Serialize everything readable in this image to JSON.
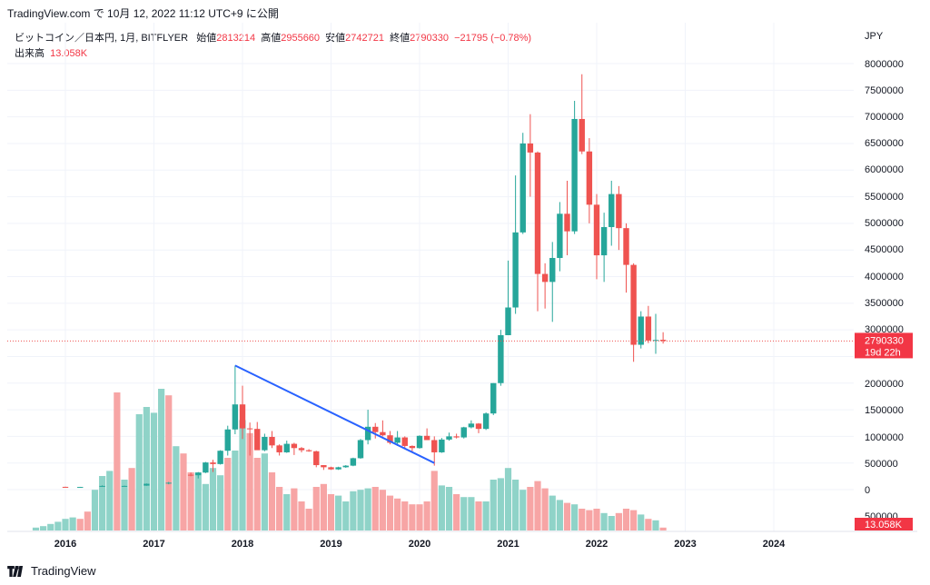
{
  "header": {
    "source_line": "TradingView.com で 10月 12, 2022 11:12 UTC+9 に公開"
  },
  "legend": {
    "symbol": "ビットコイン／日本円, 1月, BITFLYER",
    "open_label": "始値",
    "open_value": "2813214",
    "high_label": "高値",
    "high_value": "2955660",
    "low_label": "安値",
    "low_value": "2742721",
    "close_label": "終値",
    "close_value": "2790330",
    "change": "−21795 (−0.78%)",
    "volume_label": "出来高",
    "volume_value": "13.058K"
  },
  "footer": {
    "brand": "TradingView"
  },
  "colors": {
    "up": "#26a69a",
    "down": "#ef5350",
    "vol_up": "#8fd3c8",
    "vol_down": "#f7a5a5",
    "trendline": "#2962ff",
    "price_label_bg": "#f23645"
  },
  "chart_data": {
    "type": "candlestick",
    "currency": "JPY",
    "ylim": [
      -500000,
      8300000
    ],
    "price_ticks": [
      "8000000",
      "7500000",
      "7000000",
      "6500000",
      "6000000",
      "5500000",
      "5000000",
      "4500000",
      "4000000",
      "3500000",
      "3000000",
      "2000000",
      "1500000",
      "1000000",
      "500000",
      "0",
      "500000"
    ],
    "x_ticks": [
      "2016",
      "2017",
      "2018",
      "2019",
      "2020",
      "2021",
      "2022",
      "2023",
      "2024"
    ],
    "current_price_label": "2790330",
    "countdown_label": "19d 22h",
    "current_volume_label": "13.058K",
    "trendline": {
      "start": [
        "2017-12",
        2330000
      ],
      "end": [
        "2020-03",
        500000
      ]
    },
    "candles": [
      {
        "d": "2016-01",
        "o": 52000,
        "h": 56000,
        "l": 48000,
        "c": 50000
      },
      {
        "d": "2016-03",
        "o": 48000,
        "h": 52000,
        "l": 46000,
        "c": 50000
      },
      {
        "d": "2016-06",
        "o": 60000,
        "h": 80000,
        "l": 55000,
        "c": 70000
      },
      {
        "d": "2016-09",
        "o": 65000,
        "h": 75000,
        "l": 60000,
        "c": 70000
      },
      {
        "d": "2016-12",
        "o": 75000,
        "h": 115000,
        "l": 72000,
        "c": 110000
      },
      {
        "d": "2017-03",
        "o": 120000,
        "h": 145000,
        "l": 100000,
        "c": 130000
      },
      {
        "d": "2017-06",
        "o": 280000,
        "h": 320000,
        "l": 250000,
        "c": 270000
      },
      {
        "d": "2017-07",
        "o": 270000,
        "h": 330000,
        "l": 210000,
        "c": 320000
      },
      {
        "d": "2017-08",
        "o": 320000,
        "h": 520000,
        "l": 310000,
        "c": 510000
      },
      {
        "d": "2017-09",
        "o": 510000,
        "h": 560000,
        "l": 330000,
        "c": 480000
      },
      {
        "d": "2017-10",
        "o": 480000,
        "h": 740000,
        "l": 470000,
        "c": 730000
      },
      {
        "d": "2017-11",
        "o": 730000,
        "h": 1200000,
        "l": 640000,
        "c": 1130000
      },
      {
        "d": "2017-12",
        "o": 1130000,
        "h": 2330000,
        "l": 1040000,
        "c": 1600000
      },
      {
        "d": "2018-01",
        "o": 1600000,
        "h": 1950000,
        "l": 950000,
        "c": 1150000
      },
      {
        "d": "2018-02",
        "o": 1150000,
        "h": 1260000,
        "l": 640000,
        "c": 1140000
      },
      {
        "d": "2018-03",
        "o": 1140000,
        "h": 1270000,
        "l": 780000,
        "c": 740000
      },
      {
        "d": "2018-04",
        "o": 740000,
        "h": 1050000,
        "l": 720000,
        "c": 990000
      },
      {
        "d": "2018-05",
        "o": 990000,
        "h": 1100000,
        "l": 780000,
        "c": 830000
      },
      {
        "d": "2018-06",
        "o": 830000,
        "h": 850000,
        "l": 640000,
        "c": 700000
      },
      {
        "d": "2018-07",
        "o": 700000,
        "h": 920000,
        "l": 690000,
        "c": 860000
      },
      {
        "d": "2018-08",
        "o": 860000,
        "h": 880000,
        "l": 650000,
        "c": 780000
      },
      {
        "d": "2018-09",
        "o": 780000,
        "h": 800000,
        "l": 700000,
        "c": 740000
      },
      {
        "d": "2018-10",
        "o": 740000,
        "h": 760000,
        "l": 710000,
        "c": 720000
      },
      {
        "d": "2018-11",
        "o": 720000,
        "h": 730000,
        "l": 420000,
        "c": 460000
      },
      {
        "d": "2018-12",
        "o": 460000,
        "h": 460000,
        "l": 370000,
        "c": 420000
      },
      {
        "d": "2019-01",
        "o": 420000,
        "h": 430000,
        "l": 370000,
        "c": 380000
      },
      {
        "d": "2019-02",
        "o": 380000,
        "h": 430000,
        "l": 370000,
        "c": 420000
      },
      {
        "d": "2019-03",
        "o": 420000,
        "h": 460000,
        "l": 410000,
        "c": 450000
      },
      {
        "d": "2019-04",
        "o": 450000,
        "h": 600000,
        "l": 440000,
        "c": 590000
      },
      {
        "d": "2019-05",
        "o": 590000,
        "h": 950000,
        "l": 580000,
        "c": 930000
      },
      {
        "d": "2019-06",
        "o": 930000,
        "h": 1500000,
        "l": 850000,
        "c": 1180000
      },
      {
        "d": "2019-07",
        "o": 1180000,
        "h": 1250000,
        "l": 960000,
        "c": 1080000
      },
      {
        "d": "2019-08",
        "o": 1080000,
        "h": 1300000,
        "l": 1000000,
        "c": 1020000
      },
      {
        "d": "2019-09",
        "o": 1020000,
        "h": 1100000,
        "l": 850000,
        "c": 880000
      },
      {
        "d": "2019-10",
        "o": 880000,
        "h": 1100000,
        "l": 820000,
        "c": 980000
      },
      {
        "d": "2019-11",
        "o": 980000,
        "h": 1000000,
        "l": 760000,
        "c": 820000
      },
      {
        "d": "2019-12",
        "o": 820000,
        "h": 830000,
        "l": 720000,
        "c": 780000
      },
      {
        "d": "2020-01",
        "o": 780000,
        "h": 1020000,
        "l": 770000,
        "c": 1010000
      },
      {
        "d": "2020-02",
        "o": 1010000,
        "h": 1150000,
        "l": 930000,
        "c": 930000
      },
      {
        "d": "2020-03",
        "o": 930000,
        "h": 1000000,
        "l": 450000,
        "c": 700000
      },
      {
        "d": "2020-04",
        "o": 700000,
        "h": 970000,
        "l": 690000,
        "c": 940000
      },
      {
        "d": "2020-05",
        "o": 940000,
        "h": 1070000,
        "l": 920000,
        "c": 1000000
      },
      {
        "d": "2020-06",
        "o": 1000000,
        "h": 1050000,
        "l": 960000,
        "c": 980000
      },
      {
        "d": "2020-07",
        "o": 980000,
        "h": 1180000,
        "l": 960000,
        "c": 1170000
      },
      {
        "d": "2020-08",
        "o": 1170000,
        "h": 1300000,
        "l": 1150000,
        "c": 1240000
      },
      {
        "d": "2020-09",
        "o": 1240000,
        "h": 1250000,
        "l": 1060000,
        "c": 1140000
      },
      {
        "d": "2020-10",
        "o": 1140000,
        "h": 1450000,
        "l": 1120000,
        "c": 1430000
      },
      {
        "d": "2020-11",
        "o": 1430000,
        "h": 2000000,
        "l": 1400000,
        "c": 2000000
      },
      {
        "d": "2020-12",
        "o": 2000000,
        "h": 3000000,
        "l": 1950000,
        "c": 2900000
      },
      {
        "d": "2021-01",
        "o": 2900000,
        "h": 4300000,
        "l": 2900000,
        "c": 3420000
      },
      {
        "d": "2021-02",
        "o": 3420000,
        "h": 5900000,
        "l": 3300000,
        "c": 4830000
      },
      {
        "d": "2021-03",
        "o": 4830000,
        "h": 6700000,
        "l": 4800000,
        "c": 6500000
      },
      {
        "d": "2021-04",
        "o": 6500000,
        "h": 7050000,
        "l": 5500000,
        "c": 6330000
      },
      {
        "d": "2021-05",
        "o": 6330000,
        "h": 6350000,
        "l": 3350000,
        "c": 4050000
      },
      {
        "d": "2021-06",
        "o": 4050000,
        "h": 4250000,
        "l": 3400000,
        "c": 3900000
      },
      {
        "d": "2021-07",
        "o": 3900000,
        "h": 4650000,
        "l": 3150000,
        "c": 4350000
      },
      {
        "d": "2021-08",
        "o": 4350000,
        "h": 5400000,
        "l": 4100000,
        "c": 5180000
      },
      {
        "d": "2021-09",
        "o": 5180000,
        "h": 5800000,
        "l": 4400000,
        "c": 4850000
      },
      {
        "d": "2021-10",
        "o": 4850000,
        "h": 7300000,
        "l": 4800000,
        "c": 6960000
      },
      {
        "d": "2021-11",
        "o": 6960000,
        "h": 7800000,
        "l": 6300000,
        "c": 6350000
      },
      {
        "d": "2021-12",
        "o": 6350000,
        "h": 6600000,
        "l": 5000000,
        "c": 5350000
      },
      {
        "d": "2022-01",
        "o": 5350000,
        "h": 5550000,
        "l": 3950000,
        "c": 4400000
      },
      {
        "d": "2022-02",
        "o": 4400000,
        "h": 5200000,
        "l": 3900000,
        "c": 4930000
      },
      {
        "d": "2022-03",
        "o": 4930000,
        "h": 5800000,
        "l": 4580000,
        "c": 5550000
      },
      {
        "d": "2022-04",
        "o": 5550000,
        "h": 5700000,
        "l": 4500000,
        "c": 4910000
      },
      {
        "d": "2022-05",
        "o": 4910000,
        "h": 5000000,
        "l": 3700000,
        "c": 4220000
      },
      {
        "d": "2022-06",
        "o": 4220000,
        "h": 4250000,
        "l": 2400000,
        "c": 2720000
      },
      {
        "d": "2022-07",
        "o": 2720000,
        "h": 3350000,
        "l": 2650000,
        "c": 3250000
      },
      {
        "d": "2022-08",
        "o": 3250000,
        "h": 3450000,
        "l": 2750000,
        "c": 2800000
      },
      {
        "d": "2022-09",
        "o": 2800000,
        "h": 3300000,
        "l": 2550000,
        "c": 2810000
      },
      {
        "d": "2022-10",
        "o": 2813214,
        "h": 2955660,
        "l": 2742721,
        "c": 2790330
      }
    ],
    "volume_bars": [
      {
        "d": "2015-09",
        "v": 4,
        "up": true
      },
      {
        "d": "2015-10",
        "v": 6,
        "up": true
      },
      {
        "d": "2015-11",
        "v": 9,
        "up": true
      },
      {
        "d": "2015-12",
        "v": 12,
        "up": true
      },
      {
        "d": "2016-01",
        "v": 16,
        "up": true
      },
      {
        "d": "2016-02",
        "v": 18,
        "up": true
      },
      {
        "d": "2016-03",
        "v": 16,
        "up": false
      },
      {
        "d": "2016-04",
        "v": 26,
        "up": false
      },
      {
        "d": "2016-05",
        "v": 56,
        "up": true
      },
      {
        "d": "2016-06",
        "v": 75,
        "up": true
      },
      {
        "d": "2016-07",
        "v": 82,
        "up": true
      },
      {
        "d": "2016-08",
        "v": 190,
        "up": false
      },
      {
        "d": "2016-09",
        "v": 70,
        "up": true
      },
      {
        "d": "2016-10",
        "v": 86,
        "up": false
      },
      {
        "d": "2016-11",
        "v": 160,
        "up": true
      },
      {
        "d": "2016-12",
        "v": 170,
        "up": true
      },
      {
        "d": "2017-01",
        "v": 162,
        "up": true
      },
      {
        "d": "2017-02",
        "v": 195,
        "up": true
      },
      {
        "d": "2017-03",
        "v": 186,
        "up": false
      },
      {
        "d": "2017-04",
        "v": 116,
        "up": true
      },
      {
        "d": "2017-05",
        "v": 106,
        "up": false
      },
      {
        "d": "2017-06",
        "v": 80,
        "up": false
      },
      {
        "d": "2017-07",
        "v": 80,
        "up": true
      },
      {
        "d": "2017-08",
        "v": 64,
        "up": true
      },
      {
        "d": "2017-09",
        "v": 86,
        "up": true
      },
      {
        "d": "2017-10",
        "v": 76,
        "up": true
      },
      {
        "d": "2017-11",
        "v": 100,
        "up": false
      },
      {
        "d": "2017-12",
        "v": 110,
        "up": true
      },
      {
        "d": "2018-01",
        "v": 152,
        "up": true
      },
      {
        "d": "2018-02",
        "v": 134,
        "up": false
      },
      {
        "d": "2018-03",
        "v": 100,
        "up": false
      },
      {
        "d": "2018-04",
        "v": 106,
        "up": true
      },
      {
        "d": "2018-05",
        "v": 80,
        "up": false
      },
      {
        "d": "2018-06",
        "v": 60,
        "up": false
      },
      {
        "d": "2018-07",
        "v": 50,
        "up": true
      },
      {
        "d": "2018-08",
        "v": 58,
        "up": false
      },
      {
        "d": "2018-09",
        "v": 40,
        "up": false
      },
      {
        "d": "2018-10",
        "v": 30,
        "up": false
      },
      {
        "d": "2018-11",
        "v": 60,
        "up": false
      },
      {
        "d": "2018-12",
        "v": 64,
        "up": false
      },
      {
        "d": "2019-01",
        "v": 50,
        "up": false
      },
      {
        "d": "2019-02",
        "v": 48,
        "up": true
      },
      {
        "d": "2019-03",
        "v": 40,
        "up": true
      },
      {
        "d": "2019-04",
        "v": 54,
        "up": true
      },
      {
        "d": "2019-05",
        "v": 56,
        "up": true
      },
      {
        "d": "2019-06",
        "v": 58,
        "up": true
      },
      {
        "d": "2019-07",
        "v": 60,
        "up": false
      },
      {
        "d": "2019-08",
        "v": 56,
        "up": false
      },
      {
        "d": "2019-09",
        "v": 48,
        "up": false
      },
      {
        "d": "2019-10",
        "v": 44,
        "up": false
      },
      {
        "d": "2019-11",
        "v": 40,
        "up": false
      },
      {
        "d": "2019-12",
        "v": 36,
        "up": false
      },
      {
        "d": "2020-01",
        "v": 36,
        "up": false
      },
      {
        "d": "2020-02",
        "v": 40,
        "up": false
      },
      {
        "d": "2020-03",
        "v": 82,
        "up": false
      },
      {
        "d": "2020-04",
        "v": 62,
        "up": true
      },
      {
        "d": "2020-05",
        "v": 60,
        "up": true
      },
      {
        "d": "2020-06",
        "v": 50,
        "up": false
      },
      {
        "d": "2020-07",
        "v": 46,
        "up": true
      },
      {
        "d": "2020-08",
        "v": 46,
        "up": true
      },
      {
        "d": "2020-09",
        "v": 40,
        "up": false
      },
      {
        "d": "2020-10",
        "v": 40,
        "up": true
      },
      {
        "d": "2020-11",
        "v": 70,
        "up": true
      },
      {
        "d": "2020-12",
        "v": 72,
        "up": true
      },
      {
        "d": "2021-01",
        "v": 86,
        "up": true
      },
      {
        "d": "2021-02",
        "v": 70,
        "up": true
      },
      {
        "d": "2021-03",
        "v": 56,
        "up": true
      },
      {
        "d": "2021-04",
        "v": 60,
        "up": false
      },
      {
        "d": "2021-05",
        "v": 68,
        "up": false
      },
      {
        "d": "2021-06",
        "v": 58,
        "up": false
      },
      {
        "d": "2021-07",
        "v": 48,
        "up": true
      },
      {
        "d": "2021-08",
        "v": 42,
        "up": true
      },
      {
        "d": "2021-09",
        "v": 38,
        "up": false
      },
      {
        "d": "2021-10",
        "v": 36,
        "up": true
      },
      {
        "d": "2021-11",
        "v": 30,
        "up": false
      },
      {
        "d": "2021-12",
        "v": 28,
        "up": false
      },
      {
        "d": "2022-01",
        "v": 30,
        "up": false
      },
      {
        "d": "2022-02",
        "v": 24,
        "up": true
      },
      {
        "d": "2022-03",
        "v": 20,
        "up": true
      },
      {
        "d": "2022-04",
        "v": 24,
        "up": false
      },
      {
        "d": "2022-05",
        "v": 30,
        "up": false
      },
      {
        "d": "2022-06",
        "v": 28,
        "up": false
      },
      {
        "d": "2022-07",
        "v": 22,
        "up": true
      },
      {
        "d": "2022-08",
        "v": 16,
        "up": false
      },
      {
        "d": "2022-09",
        "v": 14,
        "up": true
      },
      {
        "d": "2022-10",
        "v": 4,
        "up": false
      }
    ]
  }
}
